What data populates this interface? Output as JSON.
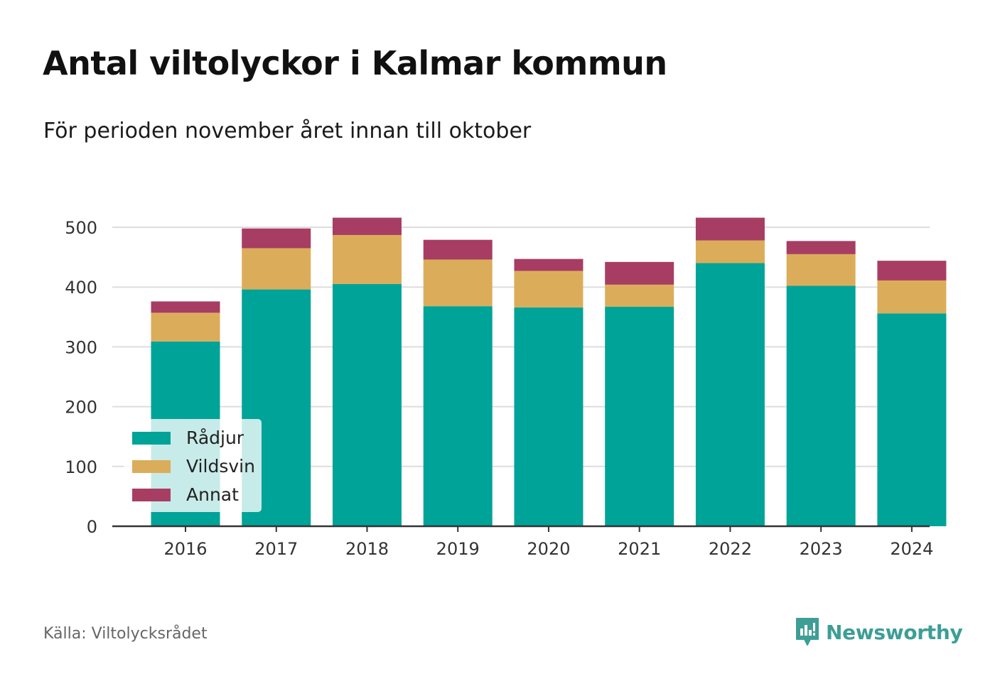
{
  "header": {
    "title": "Antal viltolyckor i Kalmar kommun",
    "subtitle": "För perioden november året innan till oktober"
  },
  "footer": {
    "source": "Källa: Viltolycksrådet",
    "brand": "Newsworthy",
    "brand_icon": "newsworthy-logo-icon"
  },
  "colors": {
    "Rådjur": "#00a398",
    "Vildsvin": "#dbad5a",
    "Annat": "#a83d63",
    "grid": "#dddddd",
    "axis": "#333333",
    "brand": "#3d9e96"
  },
  "chart_data": {
    "type": "bar",
    "stacked": true,
    "categories": [
      "2016",
      "2017",
      "2018",
      "2019",
      "2020",
      "2021",
      "2022",
      "2023",
      "2024"
    ],
    "series": [
      {
        "name": "Rådjur",
        "values": [
          309,
          396,
          405,
          368,
          366,
          367,
          440,
          402,
          356
        ]
      },
      {
        "name": "Vildsvin",
        "values": [
          48,
          69,
          82,
          78,
          61,
          37,
          38,
          53,
          55
        ]
      },
      {
        "name": "Annat",
        "values": [
          19,
          33,
          29,
          33,
          20,
          38,
          38,
          22,
          33
        ]
      }
    ],
    "ylim": [
      0,
      500
    ],
    "yticks": [
      "0",
      "100",
      "200",
      "300",
      "400",
      "500"
    ],
    "grid": true,
    "legend_position": "bottom-left"
  }
}
